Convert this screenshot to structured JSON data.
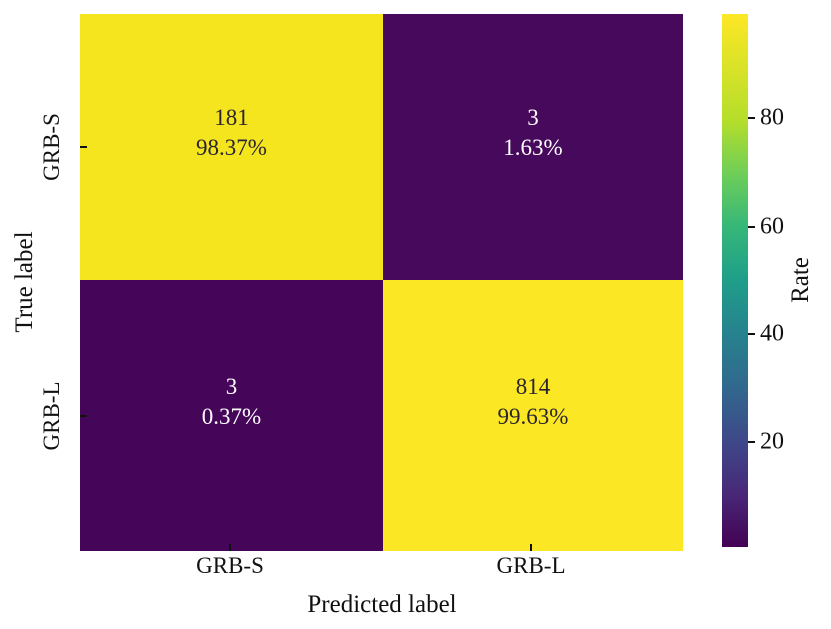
{
  "figure": {
    "background_color": "#ffffff",
    "font_style": "serif"
  },
  "chart_data": {
    "type": "heatmap",
    "title": "",
    "xlabel": "Predicted label",
    "ylabel": "True label",
    "x_categories": [
      "GRB-S",
      "GRB-L"
    ],
    "y_categories": [
      "GRB-S",
      "GRB-L"
    ],
    "cells": [
      [
        {
          "true_label": "GRB-S",
          "predicted_label": "GRB-S",
          "count": "181",
          "percent": "98.37%",
          "color": "#f4e51f",
          "text_color": "#2a2430"
        },
        {
          "true_label": "GRB-S",
          "predicted_label": "GRB-L",
          "count": "3",
          "percent": "1.63%",
          "color": "#47095b",
          "text_color": "#ffffff"
        }
      ],
      [
        {
          "true_label": "GRB-L",
          "predicted_label": "GRB-S",
          "count": "3",
          "percent": "0.37%",
          "color": "#450559",
          "text_color": "#ffffff"
        },
        {
          "true_label": "GRB-L",
          "predicted_label": "GRB-L",
          "count": "814",
          "percent": "99.63%",
          "color": "#fbe723",
          "text_color": "#2a2430"
        }
      ]
    ],
    "colorbar": {
      "label": "Rate",
      "ticks": [
        "80",
        "60",
        "40",
        "20"
      ],
      "range": [
        0.37,
        99.63
      ],
      "colormap": "viridis",
      "gradient_top_to_bottom": [
        "#fde725",
        "#b5de2b",
        "#6ece58",
        "#35b779",
        "#1f9e89",
        "#26828e",
        "#31688e",
        "#3e4989",
        "#482878",
        "#440154"
      ]
    },
    "layout": {
      "grid": "off",
      "legend": "none",
      "tick_direction": "in"
    }
  }
}
